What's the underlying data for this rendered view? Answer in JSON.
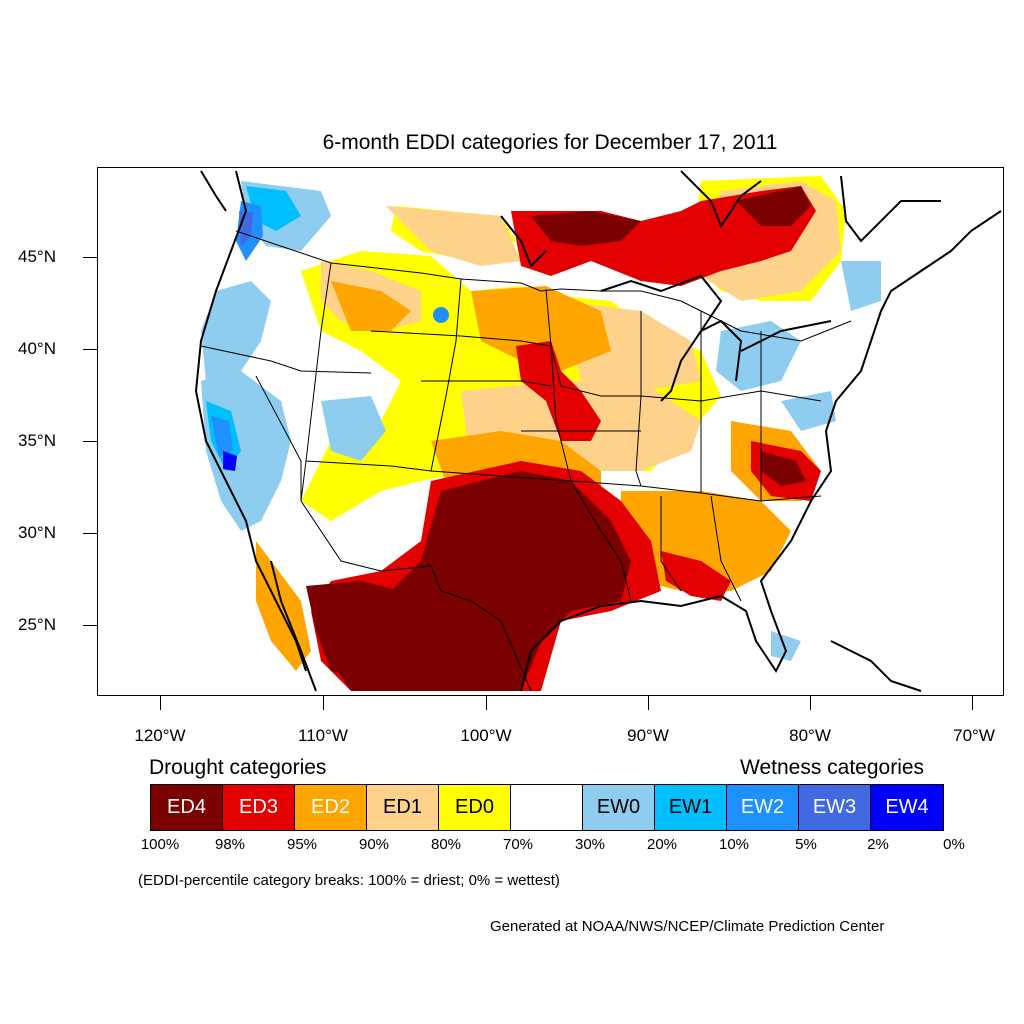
{
  "title": "6-month EDDI categories for December 17, 2011",
  "map": {
    "projection": "Lambert conformal (CONUS)",
    "lat_labels": [
      "45°N",
      "40°N",
      "35°N",
      "30°N",
      "25°N"
    ],
    "lon_labels": [
      "120°W",
      "110°W",
      "100°W",
      "90°W",
      "80°W",
      "70°W"
    ],
    "regions": [
      {
        "name": "southern plains (Texas/New Mexico)",
        "category": "ED4"
      },
      {
        "name": "northern Mexico",
        "category": "ED4"
      },
      {
        "name": "upper midwest / Great Lakes",
        "category": "ED3"
      },
      {
        "name": "southeast (Georgia/Carolinas)",
        "category": "ED2"
      },
      {
        "name": "Pacific Northwest coast",
        "category": "EW1"
      },
      {
        "name": "California / Great Basin",
        "category": "EW0"
      }
    ]
  },
  "legend": {
    "drought_heading": "Drought categories",
    "wetness_heading": "Wetness categories",
    "categories": [
      {
        "label": "ED4",
        "color": "#7b0000",
        "text_color": "#ffffff"
      },
      {
        "label": "ED3",
        "color": "#e30000",
        "text_color": "#ffffff"
      },
      {
        "label": "ED2",
        "color": "#ffa500",
        "text_color": "#ffffff"
      },
      {
        "label": "ED1",
        "color": "#ffd28c",
        "text_color": "#000000"
      },
      {
        "label": "ED0",
        "color": "#ffff00",
        "text_color": "#000000"
      },
      {
        "label": "",
        "color": "#ffffff",
        "text_color": "#000000"
      },
      {
        "label": "EW0",
        "color": "#8fcdf0",
        "text_color": "#000000"
      },
      {
        "label": "EW1",
        "color": "#00bfff",
        "text_color": "#000000"
      },
      {
        "label": "EW2",
        "color": "#1e90ff",
        "text_color": "#ffffff"
      },
      {
        "label": "EW3",
        "color": "#4169e1",
        "text_color": "#ffffff"
      },
      {
        "label": "EW4",
        "color": "#0000ff",
        "text_color": "#ffffff"
      }
    ],
    "percentiles": [
      "100%",
      "98%",
      "95%",
      "90%",
      "80%",
      "70%",
      "30%",
      "20%",
      "10%",
      "5%",
      "2%",
      "0%"
    ]
  },
  "note": "(EDDI-percentile category breaks: 100% = driest; 0% = wettest)",
  "credit": "Generated at NOAA/NWS/NCEP/Climate Prediction Center"
}
